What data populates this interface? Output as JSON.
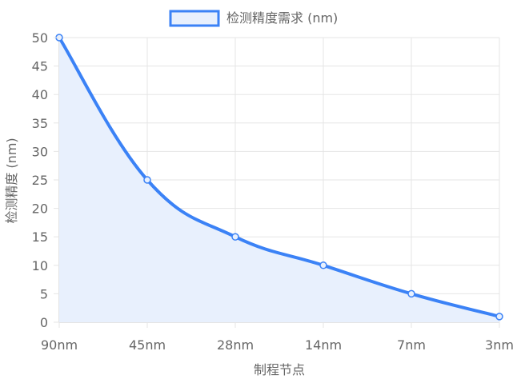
{
  "chart_data": {
    "type": "line",
    "categories": [
      "90nm",
      "45nm",
      "28nm",
      "14nm",
      "7nm",
      "3nm"
    ],
    "series": [
      {
        "name": "检测精度需求 (nm)",
        "values": [
          50,
          25,
          15,
          10,
          5,
          1
        ],
        "color": "#3b82f6",
        "fill_color": "#e8f0fd"
      }
    ],
    "xlabel": "制程节点",
    "ylabel": "检测精度 (nm)",
    "ylim": [
      0,
      50
    ],
    "y_ticks": [
      0,
      5,
      10,
      15,
      20,
      25,
      30,
      35,
      40,
      45,
      50
    ],
    "grid": true,
    "area_fill": true,
    "smooth": true,
    "legend_position": "top-center"
  },
  "colors": {
    "grid": "#e5e5e5",
    "axis": "#c8c8c8",
    "text": "#666666"
  }
}
